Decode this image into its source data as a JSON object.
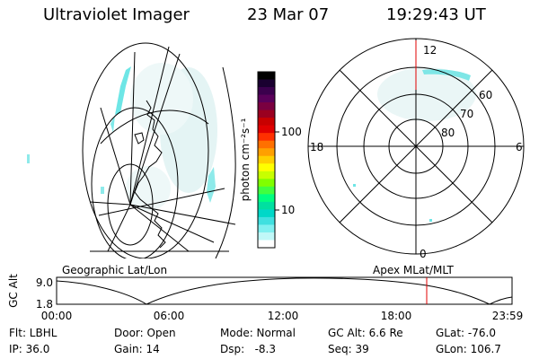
{
  "header": {
    "instrument": "Ultraviolet Imager",
    "date": "23 Mar 07",
    "time": "19:29:43 UT"
  },
  "colorbar": {
    "unit_label": "photon cm⁻²s⁻¹",
    "ticks": [
      "100",
      "10"
    ],
    "colors": [
      "#000000",
      "#1a0030",
      "#3b004d",
      "#5a005a",
      "#7a0040",
      "#9a0020",
      "#c80000",
      "#e00000",
      "#ff3000",
      "#ff7000",
      "#ffa000",
      "#ffd000",
      "#ffff00",
      "#c8ff00",
      "#80ff00",
      "#40ff40",
      "#00ff80",
      "#00e0a0",
      "#00d8c8",
      "#40e0e0",
      "#80f0f0",
      "#c0f8f8",
      "#ffffff"
    ]
  },
  "polar": {
    "mlt_labels": {
      "top": "12",
      "left": "18",
      "right": "6",
      "bottom": "0"
    },
    "lat_labels": [
      "60",
      "70",
      "80"
    ]
  },
  "panels": {
    "left_caption": "Geographic Lat/Lon",
    "right_caption": "Apex MLat/MLT"
  },
  "timeline": {
    "axis_label": "GC Alt",
    "y_top": "9.0",
    "y_bottom": "1.8",
    "time_ticks": [
      "00:00",
      "06:00",
      "12:00",
      "18:00",
      "23:59"
    ],
    "marker_color": "#e00000"
  },
  "footer": {
    "flt": "Flt: LBHL",
    "ip": "IP: 36.0",
    "door": "Door: Open",
    "gain": "Gain: 14",
    "mode": "Mode: Normal",
    "dsp": "Dsp:   -8.3",
    "gcalt": "GC Alt: 6.6 Re",
    "seq": "Seq: 39",
    "glat": "GLat: -76.0",
    "glon": "GLon: 106.7"
  }
}
